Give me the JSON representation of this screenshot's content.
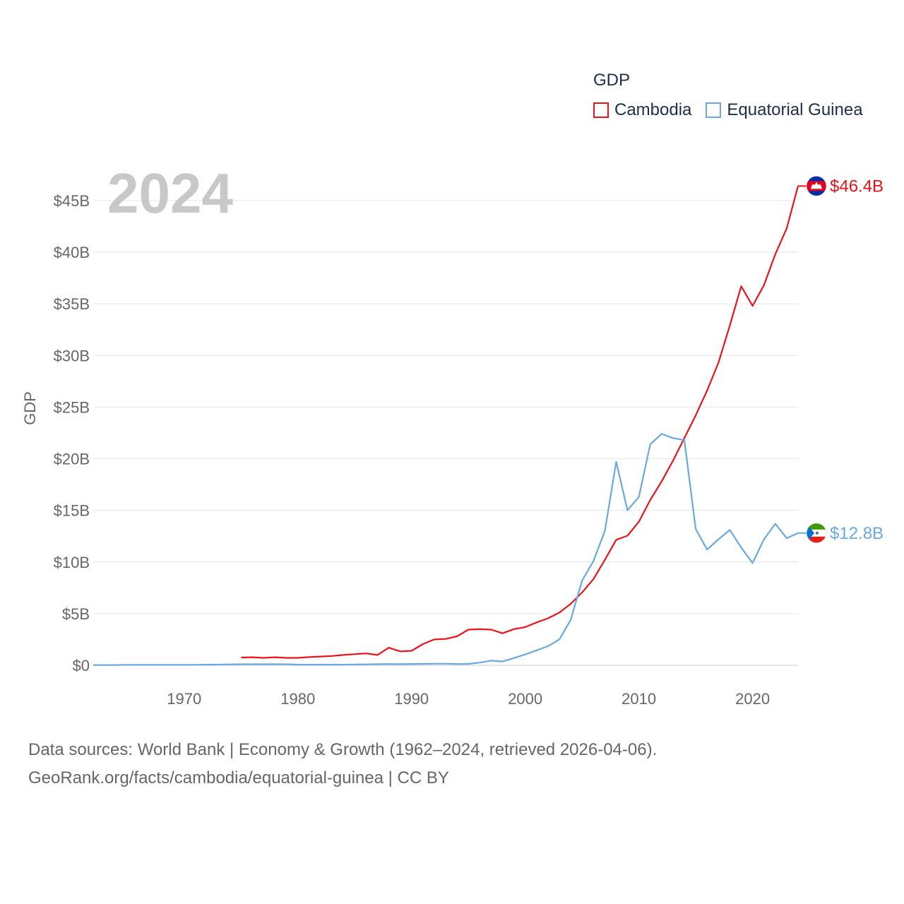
{
  "legend": {
    "title": "GDP",
    "items": [
      {
        "name": "Cambodia",
        "color": "#e8141a"
      },
      {
        "name": "Equatorial Guinea",
        "color": "#6aa8e0"
      }
    ]
  },
  "footer": {
    "line1": "Data sources: World Bank | Economy & Growth (1962–2024, retrieved 2026-04-06).",
    "line2": "GeoRank.org/facts/cambodia/equatorial-guinea | CC BY"
  },
  "chart_data": {
    "type": "line",
    "title": "GDP",
    "year_overlay": "2024",
    "ylabel": "GDP",
    "xlabel": "",
    "xlim": [
      1962,
      2024
    ],
    "ylim": [
      0,
      48
    ],
    "y_unit": "billions USD",
    "x_ticks": [
      1970,
      1980,
      1990,
      2000,
      2010,
      2020
    ],
    "x_tick_labels": [
      "1970",
      "1980",
      "1990",
      "2000",
      "2010",
      "2020"
    ],
    "y_ticks": [
      0,
      5,
      10,
      15,
      20,
      25,
      30,
      35,
      40,
      45
    ],
    "y_tick_labels": [
      "$0",
      "$5B",
      "$10B",
      "$15B",
      "$20B",
      "$25B",
      "$30B",
      "$35B",
      "$40B",
      "$45B"
    ],
    "series": [
      {
        "name": "Cambodia",
        "color": "#e8141a",
        "end_label": "$46.4B",
        "flag": "cambodia",
        "x": [
          1975,
          1976,
          1977,
          1978,
          1979,
          1980,
          1981,
          1982,
          1983,
          1984,
          1985,
          1986,
          1987,
          1988,
          1989,
          1990,
          1991,
          1992,
          1993,
          1994,
          1995,
          1996,
          1997,
          1998,
          1999,
          2000,
          2001,
          2002,
          2003,
          2004,
          2005,
          2006,
          2007,
          2008,
          2009,
          2010,
          2011,
          2012,
          2013,
          2014,
          2015,
          2016,
          2017,
          2018,
          2019,
          2020,
          2021,
          2022,
          2023,
          2024
        ],
        "values": [
          0.75,
          0.78,
          0.72,
          0.78,
          0.72,
          0.72,
          0.8,
          0.85,
          0.9,
          1.0,
          1.08,
          1.15,
          1.0,
          1.7,
          1.35,
          1.4,
          2.05,
          2.5,
          2.55,
          2.8,
          3.45,
          3.5,
          3.45,
          3.1,
          3.5,
          3.7,
          4.15,
          4.55,
          5.1,
          5.95,
          7.05,
          8.35,
          10.2,
          12.15,
          12.55,
          13.9,
          16.0,
          17.8,
          19.8,
          22.0,
          24.2,
          26.6,
          29.3,
          32.9,
          36.7,
          34.8,
          36.8,
          39.8,
          42.3,
          46.4
        ]
      },
      {
        "name": "Equatorial Guinea",
        "color": "#6aa8e0",
        "end_label": "$12.8B",
        "flag": "equatorial-guinea",
        "x": [
          1962,
          1963,
          1964,
          1965,
          1966,
          1967,
          1968,
          1969,
          1970,
          1971,
          1972,
          1973,
          1974,
          1975,
          1976,
          1977,
          1978,
          1979,
          1980,
          1981,
          1982,
          1983,
          1984,
          1985,
          1986,
          1987,
          1988,
          1989,
          1990,
          1991,
          1992,
          1993,
          1994,
          1995,
          1996,
          1997,
          1998,
          1999,
          2000,
          2001,
          2002,
          2003,
          2004,
          2005,
          2006,
          2007,
          2008,
          2009,
          2010,
          2011,
          2012,
          2013,
          2014,
          2015,
          2016,
          2017,
          2018,
          2019,
          2020,
          2021,
          2022,
          2023,
          2024
        ],
        "values": [
          0.02,
          0.02,
          0.03,
          0.04,
          0.04,
          0.05,
          0.05,
          0.05,
          0.05,
          0.05,
          0.06,
          0.07,
          0.09,
          0.1,
          0.1,
          0.1,
          0.1,
          0.1,
          0.06,
          0.06,
          0.06,
          0.06,
          0.06,
          0.08,
          0.09,
          0.11,
          0.12,
          0.11,
          0.13,
          0.14,
          0.15,
          0.15,
          0.12,
          0.14,
          0.26,
          0.45,
          0.37,
          0.7,
          1.05,
          1.45,
          1.85,
          2.5,
          4.4,
          8.2,
          10.1,
          13.0,
          19.7,
          15.0,
          16.3,
          21.4,
          22.4,
          22.0,
          21.8,
          13.2,
          11.2,
          12.2,
          13.1,
          11.4,
          9.9,
          12.2,
          13.7,
          12.3,
          12.8
        ]
      }
    ]
  }
}
